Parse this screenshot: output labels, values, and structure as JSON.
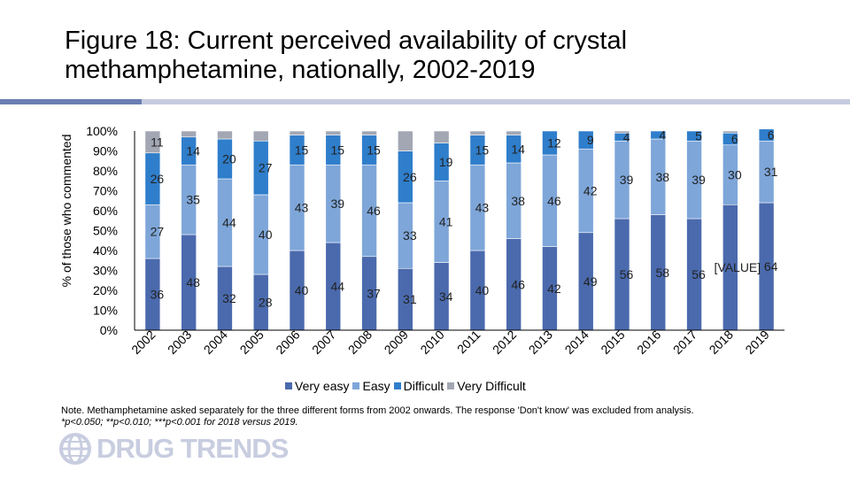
{
  "title": "Figure 18: Current perceived availability of crystal methamphetamine, nationally, 2002-2019",
  "note_line1": "Note. Methamphetamine asked separately for the three different forms from 2002 onwards. The response 'Don't know' was excluded from analysis.",
  "note_line2": "*p<0.050; **p<0.010; ***p<0.001 for 2018 versus 2019.",
  "logo": {
    "text": "DRUG TRENDS"
  },
  "colors": {
    "very_easy": "#4a6aad",
    "easy": "#7ea6d9",
    "difficult": "#2f7ecb",
    "very_difficult": "#a3a7b4"
  },
  "chart_data": {
    "type": "bar",
    "stacked": true,
    "percent": true,
    "ylabel": "% of those who commented",
    "ylim": [
      0,
      100
    ],
    "yticks": [
      "0%",
      "10%",
      "20%",
      "30%",
      "40%",
      "50%",
      "60%",
      "70%",
      "80%",
      "90%",
      "100%"
    ],
    "categories": [
      "2002",
      "2003",
      "2004",
      "2005",
      "2006",
      "2007",
      "2008",
      "2009",
      "2010",
      "2011",
      "2012",
      "2013",
      "2014",
      "2015",
      "2016",
      "2017",
      "2018",
      "2019"
    ],
    "legend_position": "bottom",
    "series": [
      {
        "name": "Very easy",
        "color": "#4a6aad",
        "values": [
          36,
          48,
          32,
          28,
          40,
          44,
          37,
          31,
          34,
          40,
          46,
          42,
          49,
          56,
          58,
          56,
          63,
          64
        ],
        "labels": [
          "36",
          "48",
          "32",
          "28",
          "40",
          "44",
          "37",
          "31",
          "34",
          "40",
          "46",
          "42",
          "49",
          "56",
          "58",
          "56",
          "[VALUE]",
          "64"
        ]
      },
      {
        "name": "Easy",
        "color": "#7ea6d9",
        "values": [
          27,
          35,
          44,
          40,
          43,
          39,
          46,
          33,
          41,
          43,
          38,
          46,
          42,
          39,
          38,
          39,
          30,
          31
        ],
        "labels": [
          "27",
          "35",
          "44",
          "40",
          "43",
          "39",
          "46",
          "33",
          "41",
          "43",
          "38",
          "46",
          "42",
          "39",
          "38",
          "39",
          "30",
          "31"
        ]
      },
      {
        "name": "Difficult",
        "color": "#2f7ecb",
        "values": [
          26,
          14,
          20,
          27,
          15,
          15,
          15,
          26,
          19,
          15,
          14,
          12,
          9,
          4,
          4,
          5,
          6,
          6
        ],
        "labels": [
          "26",
          "14",
          "20",
          "27",
          "15",
          "15",
          "15",
          "26",
          "19",
          "15",
          "14",
          "12",
          "9",
          "4",
          "4",
          "5",
          "6",
          "6"
        ]
      },
      {
        "name": "Very Difficult",
        "color": "#a3a7b4",
        "values": [
          11,
          3,
          4,
          5,
          2,
          2,
          2,
          10,
          6,
          2,
          2,
          0,
          0,
          1,
          0,
          0,
          1,
          0
        ],
        "labels": [
          "11",
          "",
          "",
          "",
          "",
          "",
          "",
          "",
          "",
          "",
          "",
          "",
          "",
          "",
          "",
          "",
          "",
          ""
        ]
      }
    ]
  }
}
